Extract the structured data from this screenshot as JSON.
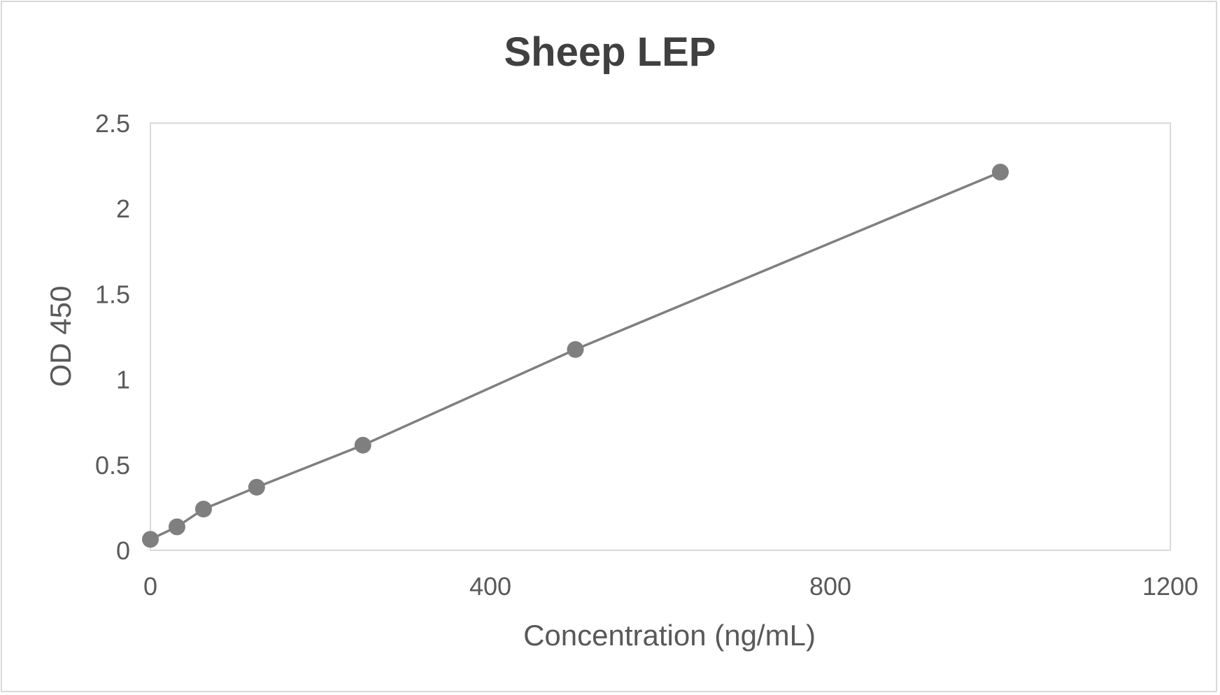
{
  "chart_data": {
    "type": "scatter",
    "title": "Sheep LEP",
    "xlabel": "Concentration (ng/mL)",
    "ylabel": "OD 450",
    "xlim": [
      0,
      1200
    ],
    "ylim": [
      0,
      2.5
    ],
    "xticks": [
      "0",
      "400",
      "800",
      "1200"
    ],
    "yticks": [
      "0",
      "0.5",
      "1",
      "1.5",
      "2",
      "2.5"
    ],
    "grid": false,
    "legend": "none",
    "lines_connected": true,
    "series": [
      {
        "color": "#7f7f7f",
        "x": [
          0,
          31.25,
          62.5,
          125,
          250,
          500,
          1000
        ],
        "y": [
          0.064,
          0.137,
          0.241,
          0.369,
          0.615,
          1.175,
          2.213
        ]
      }
    ]
  }
}
